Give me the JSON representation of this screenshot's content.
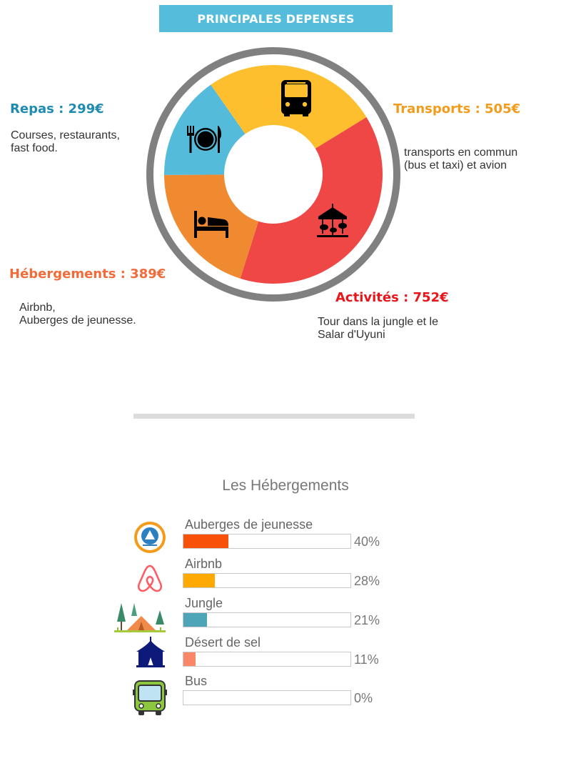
{
  "header": {
    "title": "PRINCIPALES DEPENSES"
  },
  "colors": {
    "banner": "#55bddb",
    "ring": "#808080",
    "repas": "#55bbdb",
    "transports": "#fdbf2d",
    "activites": "#ee4745",
    "hebergements": "#f08a31",
    "repas_title": "#1e8bb0",
    "transports_title": "#f39c1c",
    "activites_title": "#e8161b",
    "hebergements_title": "#f26b3a"
  },
  "chart_data": [
    {
      "type": "pie",
      "style": "donut",
      "title": "PRINCIPALES DEPENSES",
      "categories": [
        "Transports",
        "Activités",
        "Hébergements",
        "Repas"
      ],
      "values": [
        505,
        752,
        389,
        299
      ],
      "unit": "€",
      "labels": [
        {
          "key": "repas",
          "title": "Repas : 299€",
          "description": "Courses, restaurants,\nfast food.",
          "icon": "dinner-plate-icon"
        },
        {
          "key": "transports",
          "title": "Transports : 505€",
          "description": "transports en commun\n(bus et taxi) et avion",
          "icon": "bus-icon"
        },
        {
          "key": "activites",
          "title": "Activités : 752€",
          "description": "Tour dans la jungle et le\nSalar d'Uyuni",
          "icon": "carousel-icon"
        },
        {
          "key": "hebergements",
          "title": "Hébergements : 389€",
          "description": "Airbnb,\nAuberges de jeunesse.",
          "icon": "bed-icon"
        }
      ]
    },
    {
      "type": "bar",
      "orientation": "horizontal",
      "title": "Les Hébergements",
      "categories": [
        "Auberges de jeunesse",
        "Airbnb",
        "Jungle",
        "Désert de sel",
        "Bus"
      ],
      "values": [
        40,
        28,
        21,
        11,
        0
      ],
      "value_labels": [
        "40%",
        "28%",
        "21%",
        "11%",
        "0%"
      ],
      "colors": [
        "#f85109",
        "#ffa905",
        "#4fa5b8",
        "#fb8769",
        "#cccccc"
      ],
      "icons": [
        "hostelling-icon",
        "airbnb-icon",
        "tent-icon",
        "circus-tent-icon",
        "bus-front-icon"
      ],
      "xlim": [
        0,
        100
      ]
    }
  ]
}
